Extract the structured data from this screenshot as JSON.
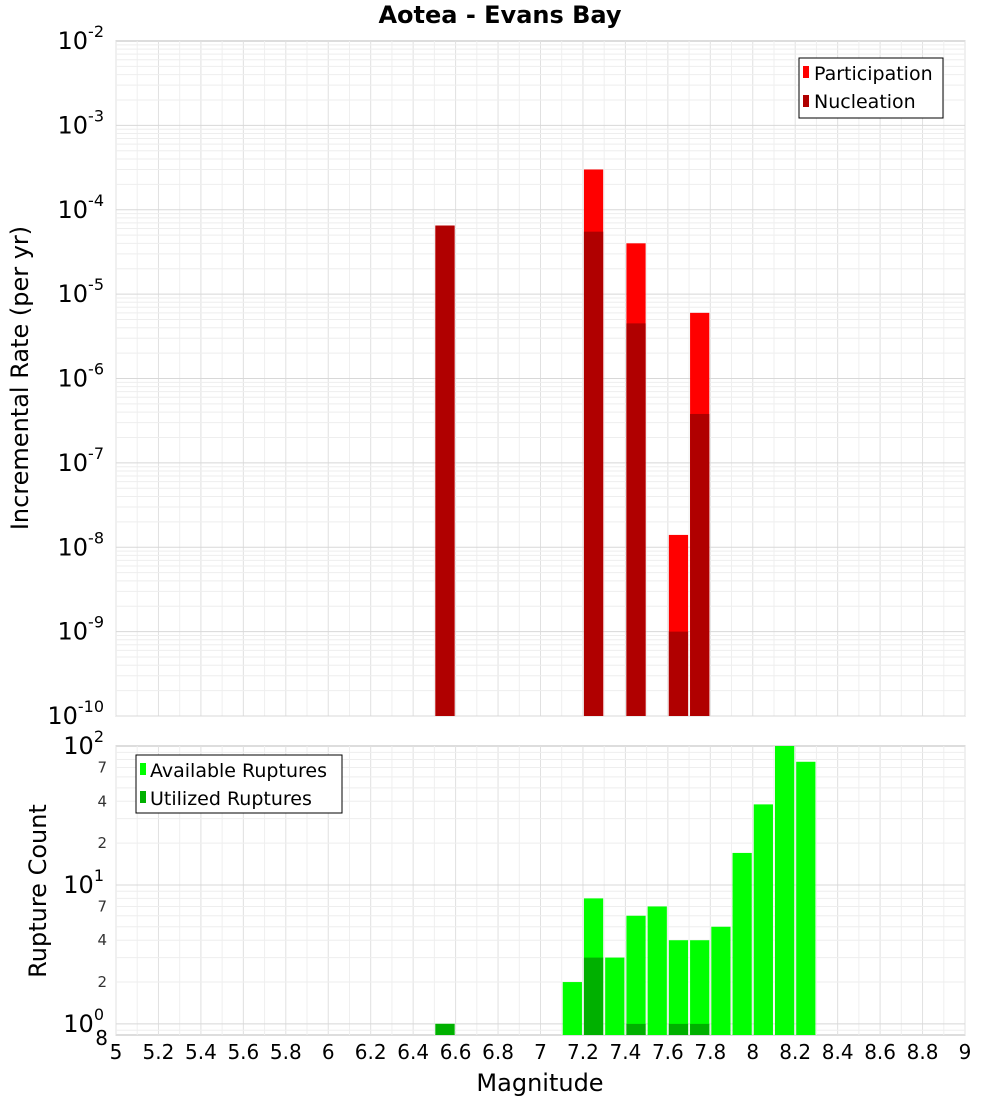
{
  "chart_data": {
    "title": "Aotea - Evans Bay",
    "xlabel": "Magnitude",
    "xlim": [
      5,
      9
    ],
    "xticks": [
      "5",
      "5.2",
      "5.4",
      "5.6",
      "5.8",
      "6",
      "6.2",
      "6.4",
      "6.6",
      "6.8",
      "7",
      "7.2",
      "7.4",
      "7.6",
      "7.8",
      "8",
      "8.2",
      "8.4",
      "8.6",
      "8.8",
      "9"
    ],
    "bin_width": 0.1,
    "panels": [
      {
        "id": "rate",
        "type": "bar",
        "yscale": "log",
        "ylabel": "Incremental Rate (per yr)",
        "ylim_exp": [
          -10,
          -2
        ],
        "ytick_labels": [
          {
            "base": "10",
            "exp": "-10"
          },
          {
            "base": "10",
            "exp": "-9"
          },
          {
            "base": "10",
            "exp": "-8"
          },
          {
            "base": "10",
            "exp": "-7"
          },
          {
            "base": "10",
            "exp": "-6"
          },
          {
            "base": "10",
            "exp": "-5"
          },
          {
            "base": "10",
            "exp": "-4"
          },
          {
            "base": "10",
            "exp": "-3"
          },
          {
            "base": "10",
            "exp": "-2"
          }
        ],
        "legend": [
          {
            "label": "Participation",
            "color": "#ff0000"
          },
          {
            "label": "Nucleation",
            "color": "#b00000"
          }
        ],
        "series": [
          {
            "name": "Participation",
            "color": "#ff0000",
            "x": [
              6.55,
              7.25,
              7.45,
              7.65,
              7.75
            ],
            "values": [
              6.5e-05,
              0.0003,
              4e-05,
              1.4e-08,
              6e-06
            ]
          },
          {
            "name": "Nucleation",
            "color": "#b00000",
            "x": [
              6.55,
              7.25,
              7.45,
              7.65,
              7.75
            ],
            "values": [
              6.5e-05,
              5.5e-05,
              4.5e-06,
              1e-09,
              3.8e-07
            ]
          }
        ]
      },
      {
        "id": "count",
        "type": "bar",
        "yscale": "log",
        "ylabel": "Rupture Count",
        "ylim_exp": [
          -0.08,
          2
        ],
        "ytick_labels": [
          {
            "base": "10",
            "exp": "0"
          },
          {
            "base": "10",
            "exp": "1"
          },
          {
            "base": "10",
            "exp": "2"
          }
        ],
        "minor_labels": [
          "2",
          "4",
          "7",
          "2",
          "4",
          "7"
        ],
        "minor_values": [
          2,
          4,
          7,
          20,
          40,
          70
        ],
        "corner_label": "8",
        "legend": [
          {
            "label": "Available Ruptures",
            "color": "#00ff00"
          },
          {
            "label": "Utilized Ruptures",
            "color": "#00b000"
          }
        ],
        "series": [
          {
            "name": "Available Ruptures",
            "color": "#00ff00",
            "x": [
              6.55,
              7.15,
              7.25,
              7.35,
              7.45,
              7.55,
              7.65,
              7.75,
              7.85,
              7.95,
              8.05,
              8.15,
              8.25
            ],
            "values": [
              1,
              2,
              8,
              3,
              6,
              7,
              4,
              4,
              5,
              17,
              38,
              100,
              77
            ]
          },
          {
            "name": "Utilized Ruptures",
            "color": "#00b000",
            "x": [
              6.55,
              7.25,
              7.45,
              7.65,
              7.75
            ],
            "values": [
              1,
              3,
              1,
              1,
              1
            ]
          }
        ]
      }
    ]
  }
}
